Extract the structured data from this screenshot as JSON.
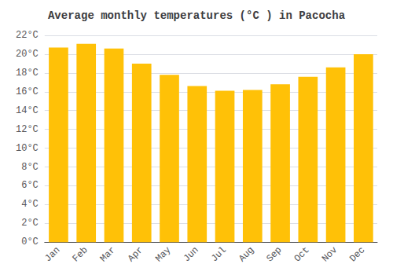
{
  "chart_data": {
    "type": "bar",
    "title": "Average monthly temperatures (°C ) in Pacocha",
    "categories": [
      "Jan",
      "Feb",
      "Mar",
      "Apr",
      "May",
      "Jun",
      "Jul",
      "Aug",
      "Sep",
      "Oct",
      "Nov",
      "Dec"
    ],
    "values": [
      20.7,
      21.1,
      20.6,
      19.0,
      17.8,
      16.6,
      16.1,
      16.2,
      16.8,
      17.6,
      18.6,
      20.0
    ],
    "color": "#FFC107",
    "ylim": [
      0,
      22
    ],
    "yticks": [
      {
        "value": 0,
        "label": "0°C"
      },
      {
        "value": 2,
        "label": "2°C"
      },
      {
        "value": 4,
        "label": "4°C"
      },
      {
        "value": 6,
        "label": "6°C"
      },
      {
        "value": 8,
        "label": "8°C"
      },
      {
        "value": 10,
        "label": "10°C"
      },
      {
        "value": 12,
        "label": "12°C"
      },
      {
        "value": 14,
        "label": "14°C"
      },
      {
        "value": 16,
        "label": "16°C"
      },
      {
        "value": 18,
        "label": "18°C"
      },
      {
        "value": 20,
        "label": "20°C"
      },
      {
        "value": 22,
        "label": "22°C"
      }
    ],
    "grid": true
  }
}
